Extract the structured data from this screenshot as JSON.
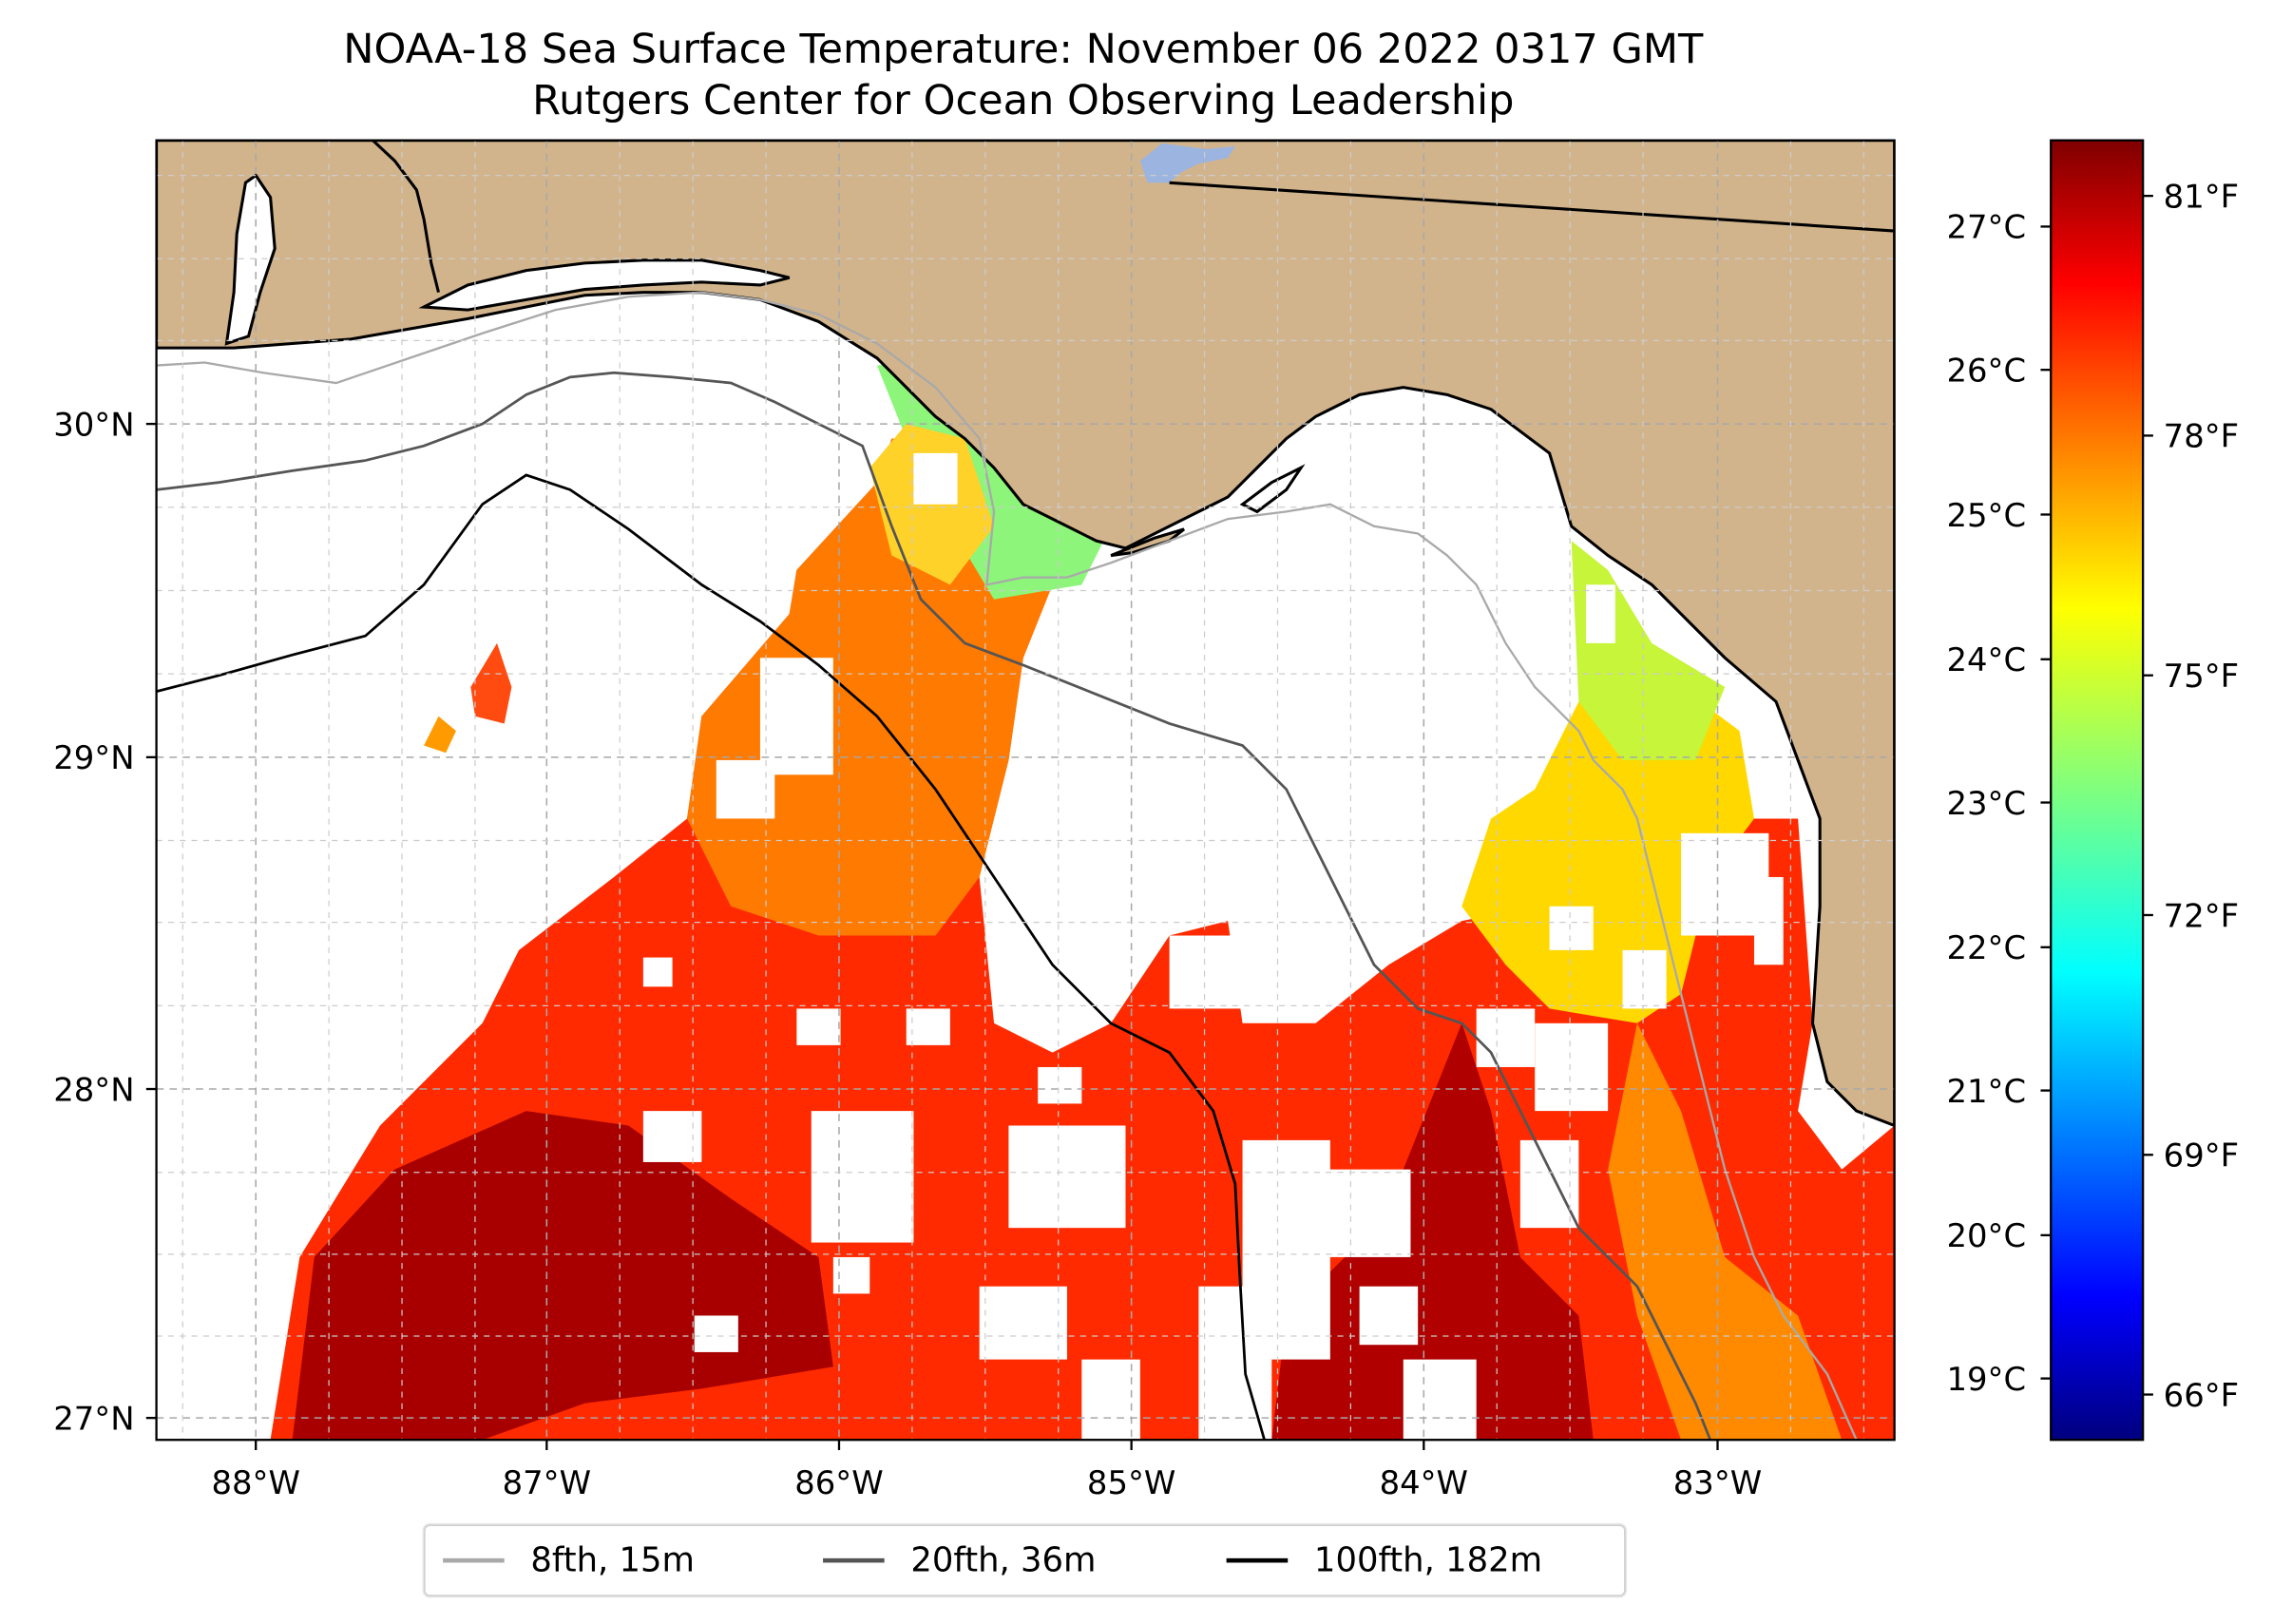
{
  "title": {
    "line1": "NOAA-18 Sea Surface Temperature: November 06 2022 0317 GMT",
    "line2": "Rutgers Center for Ocean Observing Leadership"
  },
  "map": {
    "lat_ticks": [
      "30°N",
      "29°N",
      "28°N",
      "27°N"
    ],
    "lon_ticks": [
      "88°W",
      "87°W",
      "86°W",
      "85°W",
      "84°W",
      "83°W"
    ],
    "land_color": "#d2b48c",
    "lake_color": "#9cb4e0"
  },
  "colorbar": {
    "celsius_ticks": [
      "27°C",
      "26°C",
      "25°C",
      "24°C",
      "23°C",
      "22°C",
      "21°C",
      "20°C",
      "19°C"
    ],
    "fahrenheit_ticks": [
      "81°F",
      "78°F",
      "75°F",
      "72°F",
      "69°F",
      "66°F"
    ],
    "colormap": [
      "#00007f",
      "#0000ff",
      "#007fff",
      "#00ffff",
      "#7fff7f",
      "#ffff00",
      "#ff7f00",
      "#ff0000",
      "#7f0000"
    ]
  },
  "legend": {
    "items": [
      {
        "label": "8fth, 15m",
        "color": "#a9a9a9"
      },
      {
        "label": "20fth, 36m",
        "color": "#555555"
      },
      {
        "label": "100fth, 182m",
        "color": "#000000"
      }
    ]
  }
}
